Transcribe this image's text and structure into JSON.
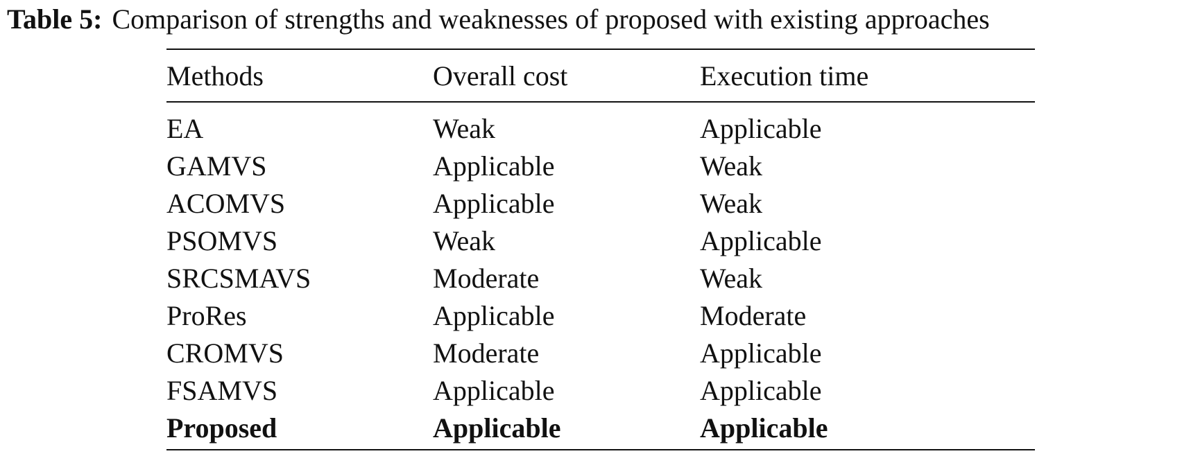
{
  "caption": {
    "label": "Table 5:",
    "text": "Comparison of strengths and weaknesses of proposed with existing approaches"
  },
  "table": {
    "headers": [
      "Methods",
      "Overall cost",
      "Execution time"
    ],
    "rows": [
      {
        "cells": [
          "EA",
          "Weak",
          "Applicable"
        ],
        "bold": false
      },
      {
        "cells": [
          "GAMVS",
          "Applicable",
          "Weak"
        ],
        "bold": false
      },
      {
        "cells": [
          "ACOMVS",
          "Applicable",
          "Weak"
        ],
        "bold": false
      },
      {
        "cells": [
          "PSOMVS",
          "Weak",
          "Applicable"
        ],
        "bold": false
      },
      {
        "cells": [
          "SRCSMAVS",
          "Moderate",
          "Weak"
        ],
        "bold": false
      },
      {
        "cells": [
          "ProRes",
          "Applicable",
          "Moderate"
        ],
        "bold": false
      },
      {
        "cells": [
          "CROMVS",
          "Moderate",
          "Applicable"
        ],
        "bold": false
      },
      {
        "cells": [
          "FSAMVS",
          "Applicable",
          "Applicable"
        ],
        "bold": false
      },
      {
        "cells": [
          "Proposed",
          "Applicable",
          "Applicable"
        ],
        "bold": true
      }
    ]
  }
}
